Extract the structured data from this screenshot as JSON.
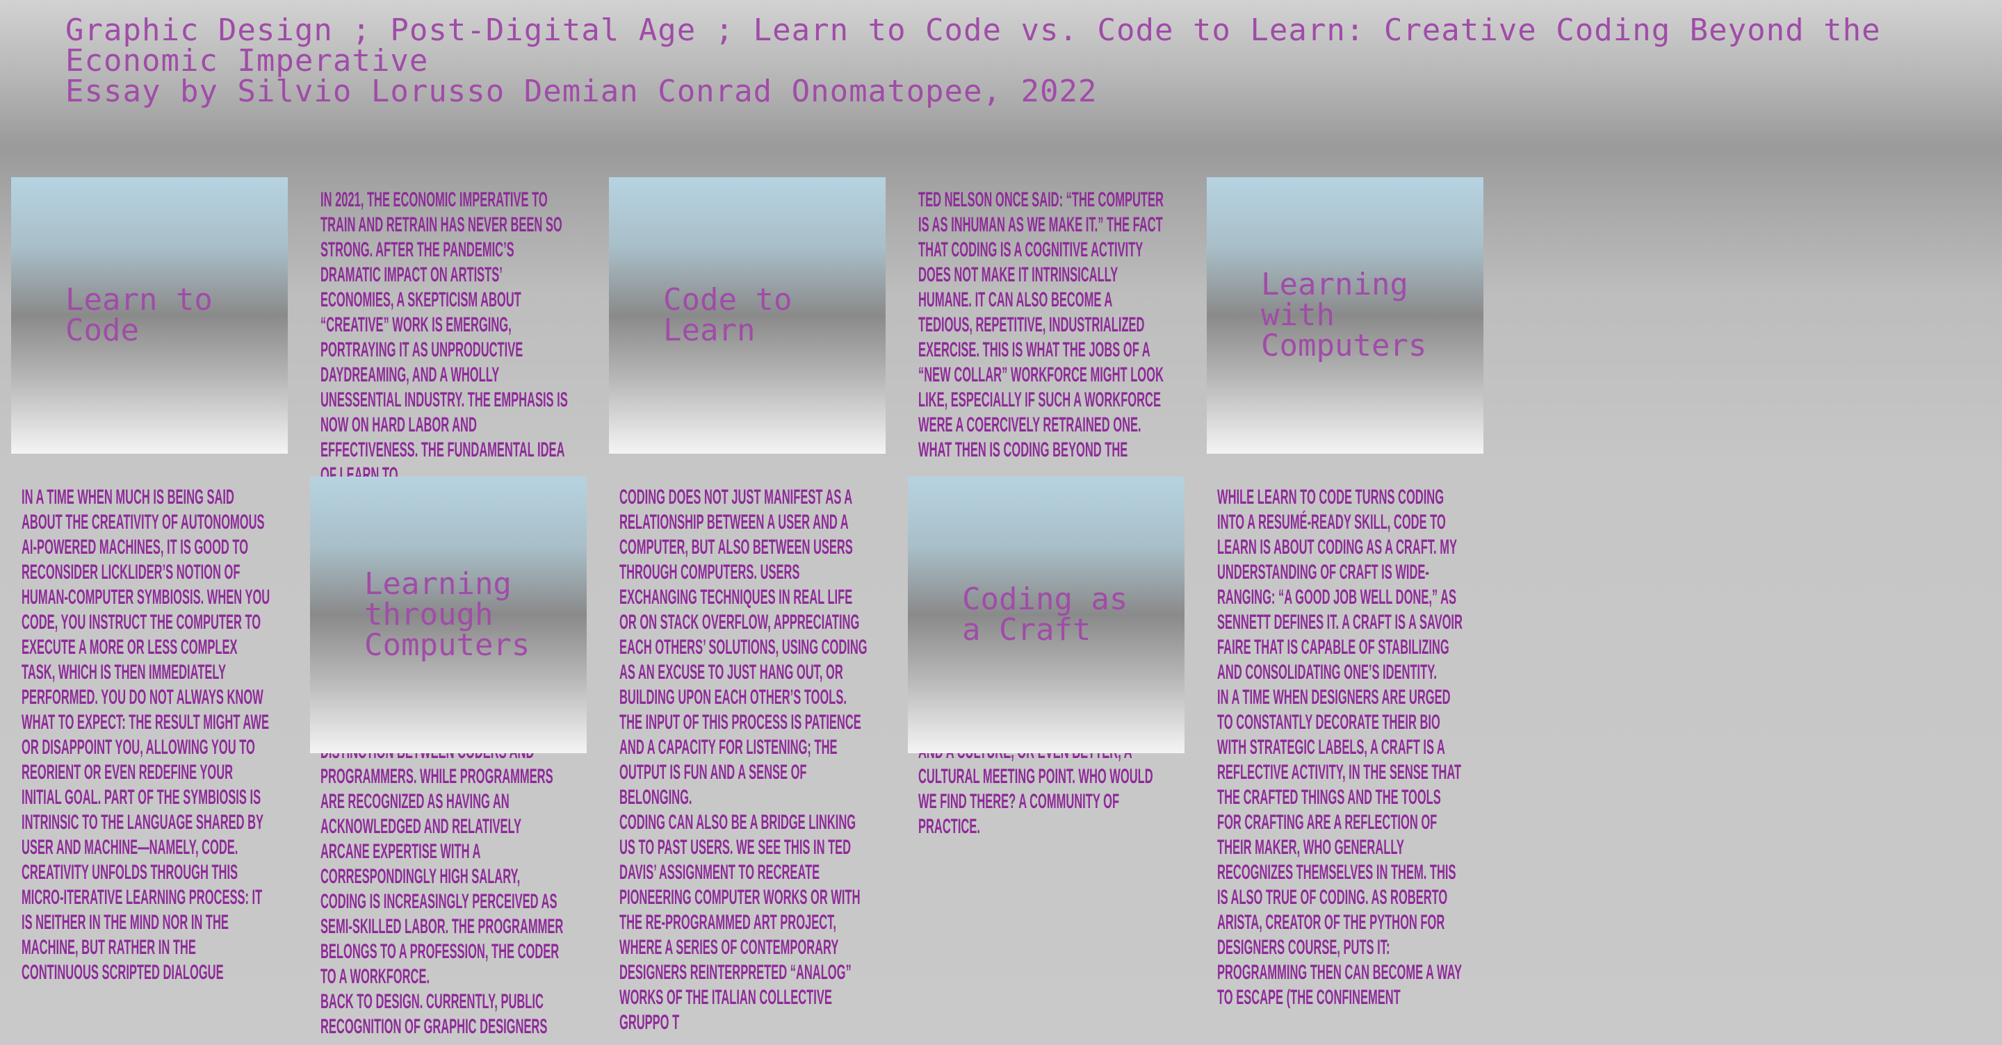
{
  "header": {
    "title": "Graphic Design ; Post-Digital Age ; Learn to Code vs. Code to Learn: Creative Coding Beyond the Economic Imperative",
    "byline": "Essay by Silvio Lorusso Demian Conrad Onomatopee, 2022"
  },
  "cards": [
    {
      "label": "Learn to Code"
    },
    {
      "label": "Code to Learn"
    },
    {
      "label": "Learning with Computers"
    },
    {
      "label": "Learning through Computers"
    },
    {
      "label": "Coding as a Craft"
    }
  ],
  "columns": [
    {
      "paragraphs": [
        "In 2021, the economic imperative to train and retrain has never been so strong. After the pandemic’s dramatic impact on artists’ economies, a skepticism about “creative” work is emerging, portraying it as unproductive daydreaming, and a wholly unessential industry. The emphasis is now on hard labor and effectiveness. The fundamental idea of Learn to"
      ]
    },
    {
      "paragraphs": [
        "distinction between coders and programmers. While programmers are recognized as having an acknowledged and relatively arcane expertise with a correspondingly high salary, coding is increasingly perceived as semi-skilled labor. The programmer belongs to a profession, the coder to a workforce.",
        "Back to design. Currently, public recognition of graphic designers"
      ]
    },
    {
      "paragraphs": [
        "Ted Nelson once said: “The computer is as inhuman as we make it.” The fact that coding is a cognitive activity does not make it intrinsically humane. It can also become a tedious, repetitive, industrialized exercise. This is what the jobs of a “new collar” workforce might look like, especially if such a workforce were a coercively retrained one. What then is coding beyond the"
      ]
    },
    {
      "paragraphs": [
        "and a culture, or even better, a cultural meeting point. Who would we find there? A community of practice."
      ]
    },
    {
      "paragraphs": [
        "In a time when much is being said about the creativity of autonomous AI-powered machines, it is good to reconsider Licklider’s notion of human-computer symbiosis. When you code, you instruct the computer to execute a more or less complex task, which is then immediately performed. You do not always know what to expect: the result might awe or disappoint you, allowing you to reorient or even redefine your initial goal. Part of the symbiosis is intrinsic to the language shared by user and machine—namely, code.",
        "Creativity unfolds through this micro-iterative learning process: it is neither in the mind nor in the machine, but rather in the continuous scripted dialogue"
      ]
    },
    {
      "paragraphs": [
        "Coding does not just manifest as a relationship between a user and a computer, but also between users through computers. Users exchanging techniques in real life or on Stack Overflow, appreciating each others’ solutions, using coding as an excuse to just hang out, or building upon each other’s tools. The input of this process is patience and a capacity for listening; the output is fun and a sense of belonging.",
        "Coding can also be a bridge linking us to past users. We see this in Ted Davis’ assignment to recreate pioneering computer works or with the Re-Programmed Art project, where a series of contemporary designers reinterpreted “analog” works of the Italian collective Gruppo T"
      ]
    },
    {
      "paragraphs": [
        "While Learn to Code turns coding into a resumé-ready skill, Code to Learn is about coding as a craft. My understanding of craft is wide-ranging: “a good job well done,” as Sennett defines it. A craft is a savoir faire that is capable of stabilizing and consolidating one’s identity.",
        "In a time when designers are urged to constantly decorate their bio with strategic labels, a craft is a reflective activity, in the sense that the crafted things and the tools for crafting are a reflection of their maker, who generally recognizes themselves in them. This is also true of coding. As Roberto Arista, creator of the Python for Designers course, puts it: programming then can become a way to escape (the confinement"
      ]
    }
  ]
}
